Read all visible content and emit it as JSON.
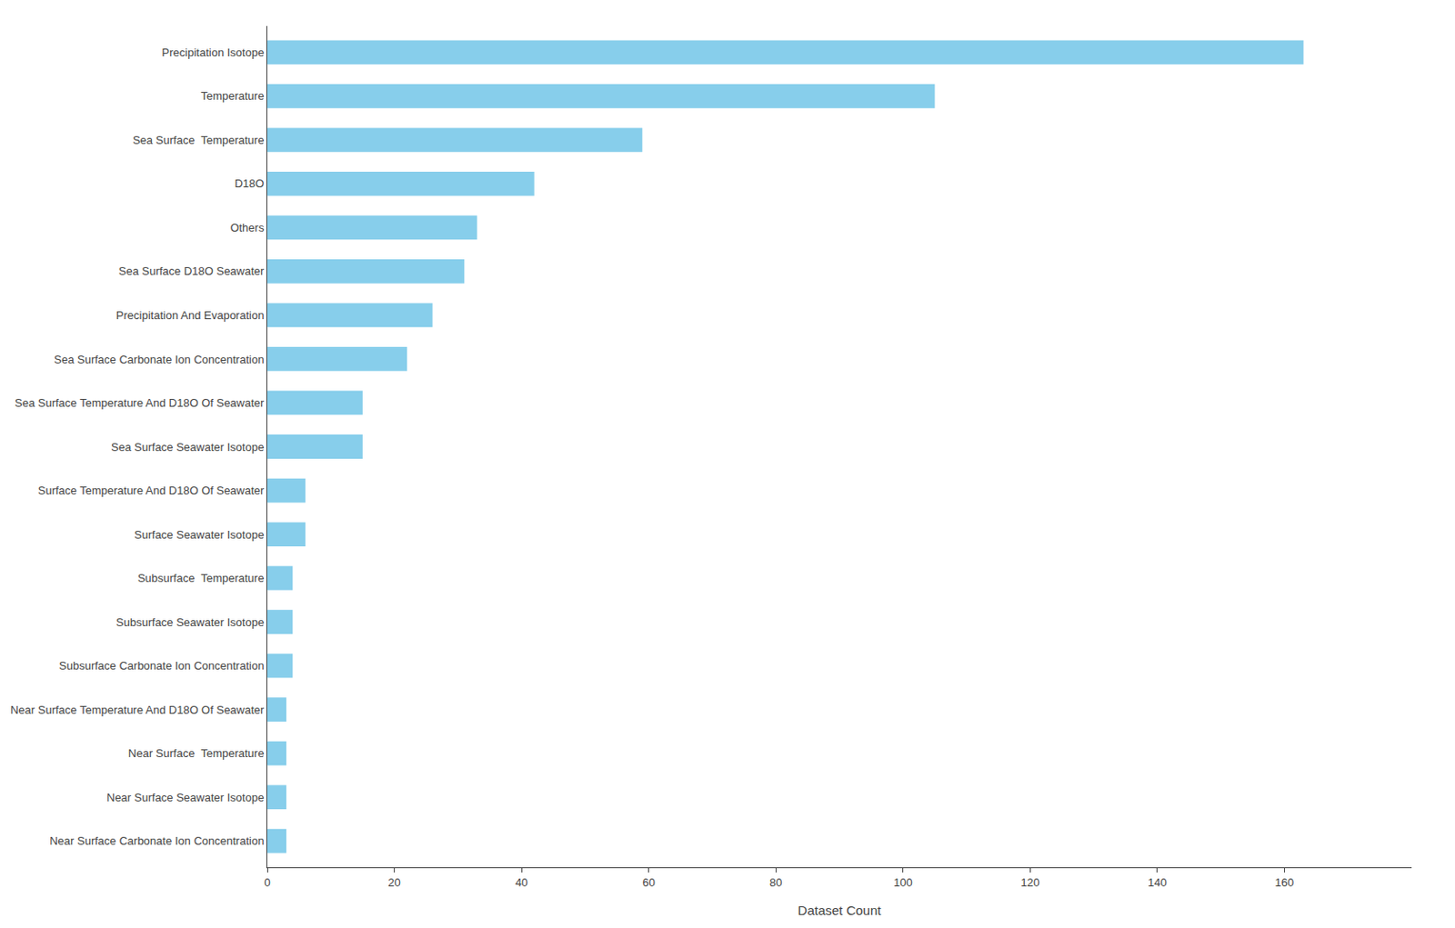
{
  "chart_data": {
    "type": "bar",
    "orientation": "horizontal",
    "categories": [
      "Near Surface Carbonate Ion Concentration",
      "Near Surface Seawater Isotope",
      "Near Surface  Temperature",
      "Near Surface Temperature And D18O Of Seawater",
      "Subsurface Carbonate Ion Concentration",
      "Subsurface Seawater Isotope",
      "Subsurface  Temperature",
      "Surface Seawater Isotope",
      "Surface Temperature And D18O Of Seawater",
      "Sea Surface Seawater Isotope",
      "Sea Surface Temperature And D18O Of Seawater",
      "Sea Surface Carbonate Ion Concentration",
      "Precipitation And Evaporation",
      "Sea Surface D18O Seawater",
      "Others",
      "D18O",
      "Sea Surface  Temperature",
      "Temperature",
      "Precipitation Isotope"
    ],
    "values": [
      3,
      3,
      3,
      3,
      4,
      4,
      4,
      6,
      6,
      15,
      15,
      22,
      26,
      31,
      33,
      42,
      59,
      105,
      163
    ],
    "color": "#87CEEB",
    "xlabel": "Dataset Count",
    "xlim": [
      0,
      180
    ],
    "xticks": [
      0,
      20,
      40,
      60,
      80,
      100,
      120,
      140,
      160
    ],
    "grid": false
  }
}
